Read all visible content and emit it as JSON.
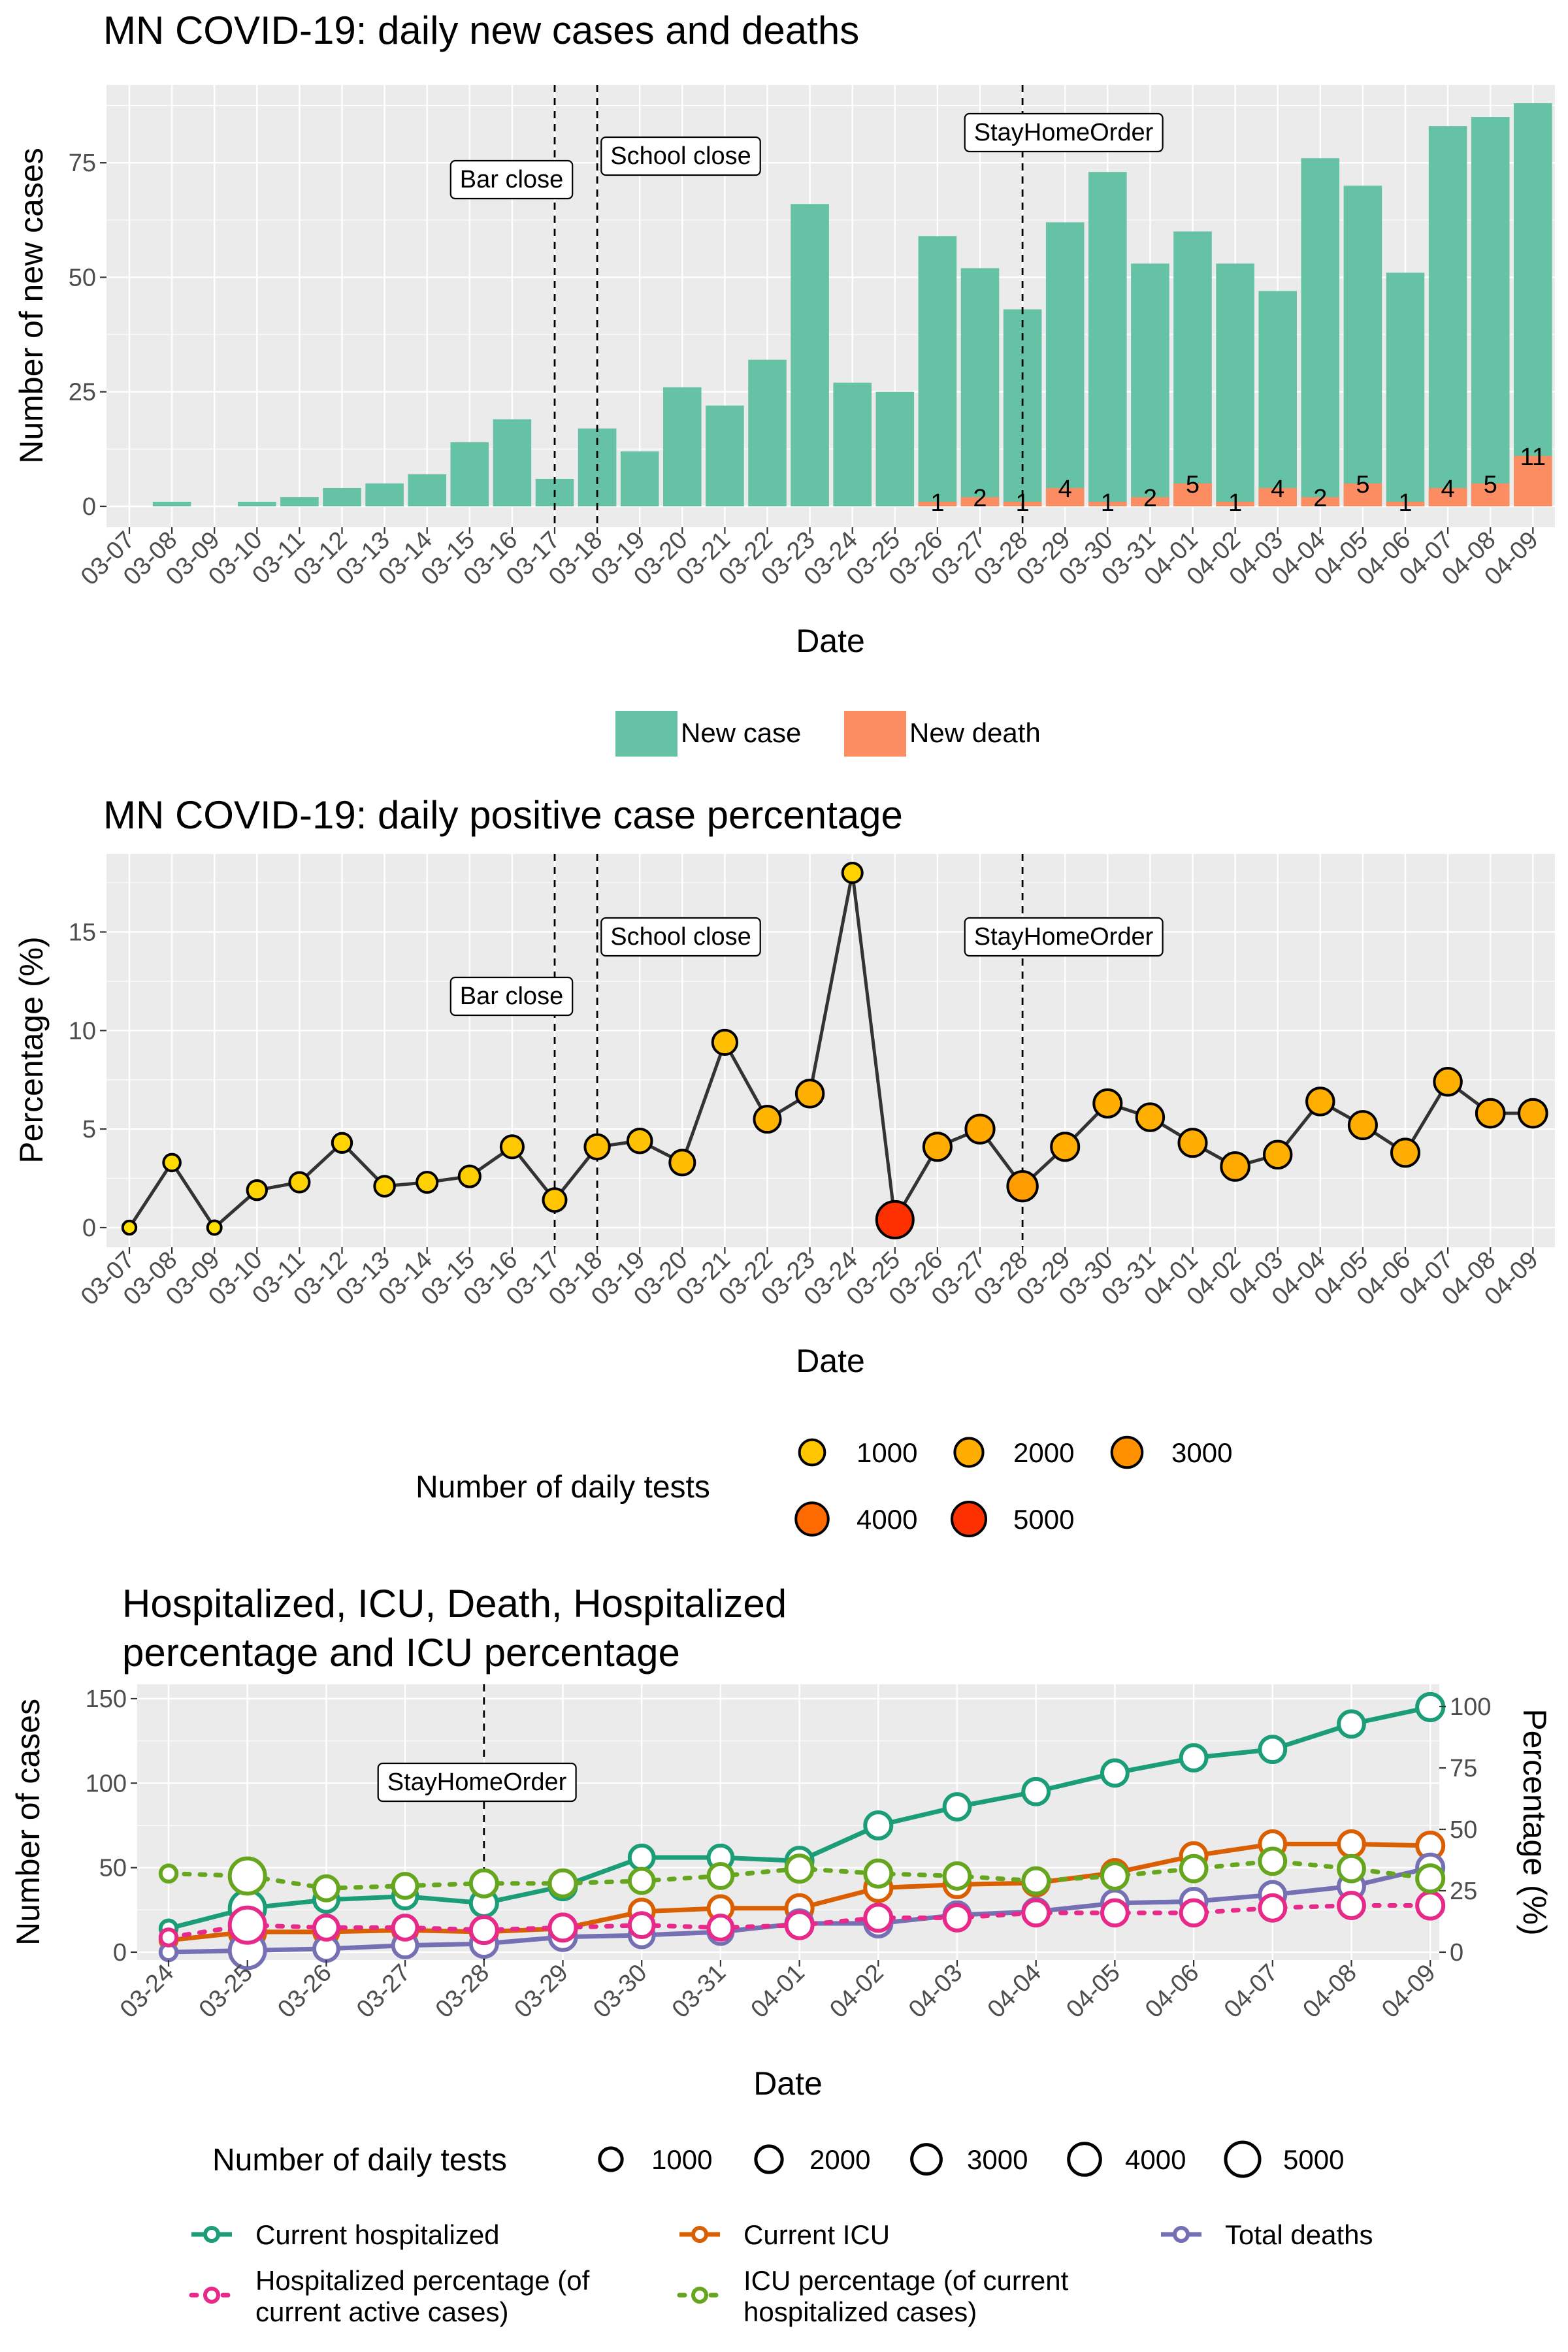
{
  "colors": {
    "panel_bg": "#EBEBEB",
    "grid": "#FFFFFF",
    "new_case": "#66C2A5",
    "new_death": "#FC8D62",
    "line": "#333333",
    "hospitalized": "#1B9E77",
    "icu": "#D95F02",
    "deaths": "#7570B3",
    "hosp_pct": "#E7298A",
    "icu_pct": "#66A61E",
    "test_colors": [
      "#FFE000",
      "#FFC000",
      "#FFA000",
      "#FF7A00",
      "#FF3000"
    ]
  },
  "chart_data": [
    {
      "type": "bar",
      "title": "MN COVID-19: daily new cases and deaths",
      "xlabel": "Date",
      "ylabel": "Number of new cases",
      "ylim": [
        0,
        90
      ],
      "yticks": [
        0,
        25,
        50,
        75
      ],
      "stacked": false,
      "categories": [
        "03-07",
        "03-08",
        "03-09",
        "03-10",
        "03-11",
        "03-12",
        "03-13",
        "03-14",
        "03-15",
        "03-16",
        "03-17",
        "03-18",
        "03-19",
        "03-20",
        "03-21",
        "03-22",
        "03-23",
        "03-24",
        "03-25",
        "03-26",
        "03-27",
        "03-28",
        "03-29",
        "03-30",
        "03-31",
        "04-01",
        "04-02",
        "04-03",
        "04-04",
        "04-05",
        "04-06",
        "04-07",
        "04-08",
        "04-09"
      ],
      "series": [
        {
          "name": "New case",
          "values": [
            0,
            1,
            0,
            1,
            2,
            4,
            5,
            7,
            14,
            19,
            6,
            17,
            12,
            26,
            22,
            32,
            66,
            27,
            25,
            59,
            52,
            43,
            62,
            73,
            53,
            60,
            53,
            47,
            76,
            70,
            51,
            83,
            85,
            88
          ]
        },
        {
          "name": "New death",
          "values": [
            0,
            0,
            0,
            0,
            0,
            0,
            0,
            0,
            0,
            0,
            0,
            0,
            0,
            0,
            0,
            0,
            0,
            0,
            0,
            1,
            2,
            1,
            4,
            1,
            2,
            5,
            1,
            4,
            2,
            5,
            1,
            4,
            5,
            11
          ]
        }
      ],
      "data_labels": [
        "",
        "",
        "",
        "",
        "",
        "",
        "",
        "",
        "",
        "",
        "",
        "",
        "",
        "",
        "",
        "",
        "",
        "",
        "",
        "1",
        "2",
        "1",
        "4",
        "1",
        "2",
        "5",
        "1",
        "4",
        "2",
        "5",
        "1",
        "4",
        "5",
        "11"
      ],
      "annotations": [
        {
          "label": "Bar close",
          "date": "03-17"
        },
        {
          "label": "School close",
          "date": "03-18"
        },
        {
          "label": "StayHomeOrder",
          "date": "03-28"
        }
      ],
      "legend": {
        "position": "bottom",
        "items": [
          "New case",
          "New death"
        ]
      }
    },
    {
      "type": "line",
      "title": "MN COVID-19: daily positive case percentage",
      "xlabel": "Date",
      "ylabel": "Percentage (%)",
      "ylim": [
        0,
        18
      ],
      "yticks": [
        0,
        5,
        10,
        15
      ],
      "categories": [
        "03-07",
        "03-08",
        "03-09",
        "03-10",
        "03-11",
        "03-12",
        "03-13",
        "03-14",
        "03-15",
        "03-16",
        "03-17",
        "03-18",
        "03-19",
        "03-20",
        "03-21",
        "03-22",
        "03-23",
        "03-24",
        "03-25",
        "03-26",
        "03-27",
        "03-28",
        "03-29",
        "03-30",
        "03-31",
        "04-01",
        "04-02",
        "04-03",
        "04-04",
        "04-05",
        "04-06",
        "04-07",
        "04-08",
        "04-09"
      ],
      "values": [
        0,
        3.3,
        0,
        1.9,
        2.3,
        4.3,
        2.1,
        2.3,
        2.6,
        4.1,
        1.4,
        4.1,
        4.4,
        3.3,
        9.4,
        5.5,
        6.8,
        18,
        0.4,
        4.1,
        5.0,
        2.1,
        4.1,
        6.3,
        5.6,
        4.3,
        3.1,
        3.7,
        6.4,
        5.2,
        3.8,
        7.4,
        5.8,
        5.8
      ],
      "daily_tests": [
        20,
        200,
        30,
        450,
        500,
        450,
        550,
        600,
        700,
        900,
        1000,
        1300,
        1200,
        1400,
        1300,
        1700,
        1900,
        500,
        5000,
        2000,
        2200,
        2600,
        2000,
        2000,
        1900,
        2000,
        2100,
        1900,
        1900,
        2000,
        2000,
        1900,
        2100,
        2100
      ],
      "annotations": [
        {
          "label": "Bar close",
          "date": "03-17"
        },
        {
          "label": "School close",
          "date": "03-18"
        },
        {
          "label": "StayHomeOrder",
          "date": "03-28"
        }
      ],
      "legend": {
        "position": "bottom",
        "title": "Number of daily tests",
        "items": [
          "1000",
          "2000",
          "3000",
          "4000",
          "5000"
        ]
      }
    },
    {
      "type": "line",
      "title": "Hospitalized, ICU, Death, Hospitalized percentage and ICU percentage",
      "title_lines": [
        "Hospitalized, ICU, Death, Hospitalized",
        "percentage and ICU percentage"
      ],
      "xlabel": "Date",
      "ylabel": "Number of cases",
      "y2label": "Percentage (%)",
      "ylim": [
        0,
        150
      ],
      "yticks": [
        0,
        50,
        100,
        150
      ],
      "y2lim": [
        0,
        100
      ],
      "y2ticks": [
        0,
        25,
        50,
        75,
        100
      ],
      "categories": [
        "03-24",
        "03-25",
        "03-26",
        "03-27",
        "03-28",
        "03-29",
        "03-30",
        "03-31",
        "04-01",
        "04-02",
        "04-03",
        "04-04",
        "04-05",
        "04-06",
        "04-07",
        "04-08",
        "04-09"
      ],
      "series": [
        {
          "name": "Current hospitalized",
          "axis": "left",
          "style": "solid",
          "values": [
            14,
            26,
            31,
            33,
            29,
            39,
            56,
            56,
            54,
            75,
            86,
            95,
            106,
            115,
            120,
            135,
            145
          ]
        },
        {
          "name": "Current ICU",
          "axis": "left",
          "style": "solid",
          "values": [
            7,
            12,
            12,
            13,
            12,
            14,
            24,
            26,
            26,
            38,
            40,
            41,
            47,
            57,
            64,
            64,
            63
          ]
        },
        {
          "name": "Total deaths",
          "axis": "left",
          "style": "solid",
          "values": [
            0,
            1,
            2,
            4,
            5,
            9,
            10,
            12,
            17,
            17,
            22,
            24,
            29,
            30,
            34,
            39,
            50
          ]
        },
        {
          "name": "Hospitalized percentage (of current active cases)",
          "axis": "right",
          "style": "dotted",
          "values": [
            6,
            11,
            10,
            10,
            9,
            10,
            11,
            10,
            11,
            14,
            14,
            16,
            16,
            16,
            18,
            19,
            19
          ]
        },
        {
          "name": "ICU percentage (of current hospitalized cases)",
          "axis": "right",
          "style": "dotted",
          "values": [
            32,
            31,
            26,
            27,
            28,
            28,
            29,
            31,
            34,
            32,
            31,
            29,
            31,
            34,
            37,
            34,
            30
          ]
        }
      ],
      "daily_tests": [
        250,
        5000,
        1500,
        1500,
        2000,
        2000,
        1500,
        1500,
        2000,
        2000,
        1800,
        1800,
        1800,
        1800,
        1800,
        1800,
        2000
      ],
      "annotations": [
        {
          "label": "StayHomeOrder",
          "date": "03-28"
        }
      ],
      "legend": {
        "position": "bottom",
        "size_title": "Number of daily tests",
        "size_items": [
          "1000",
          "2000",
          "3000",
          "4000",
          "5000"
        ],
        "series_labels": [
          [
            "Current hospitalized"
          ],
          [
            "Current ICU"
          ],
          [
            "Total deaths"
          ],
          [
            "Hospitalized percentage (of",
            "current active cases)"
          ],
          [
            "ICU percentage (of current",
            "hospitalized cases)"
          ]
        ]
      }
    }
  ]
}
